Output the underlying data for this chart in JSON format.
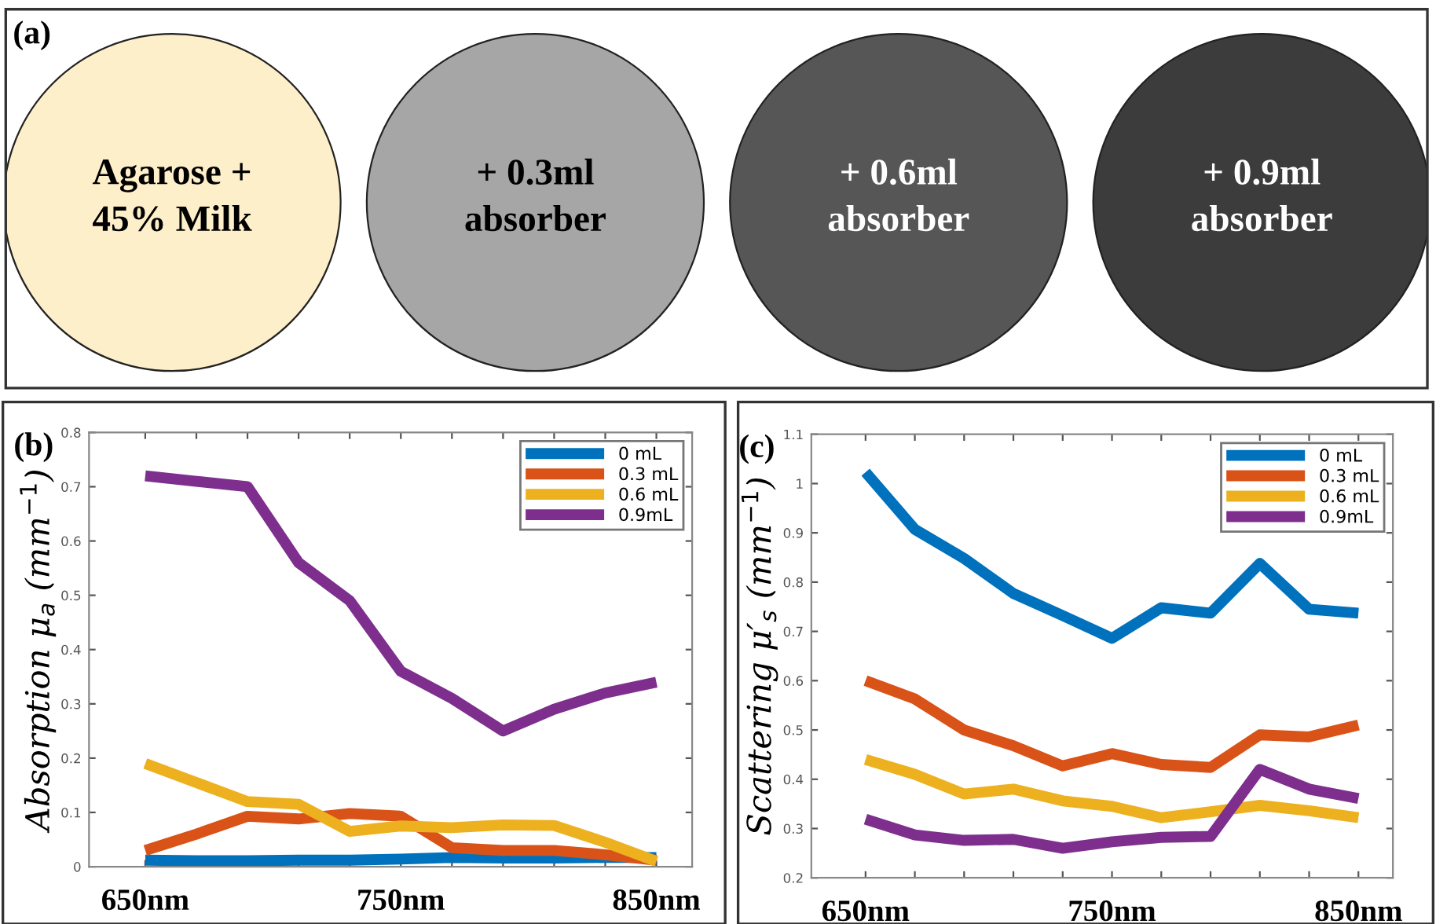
{
  "chart_data": [
    {
      "type": "other",
      "title": "(a)",
      "annotations": [
        "Agarose +\n45% Milk",
        "+ 0.3ml\nabsorber",
        "+ 0.6ml\nabsorber",
        "+ 0.9ml\nabsorber"
      ]
    },
    {
      "type": "line",
      "title": "(b)",
      "ylabel": "Absorption μ$_{a}$ (mm$^{−1}$)",
      "x": [
        650,
        670,
        690,
        710,
        730,
        750,
        770,
        790,
        810,
        830,
        850
      ],
      "xlim": [
        628,
        864
      ],
      "xticks": [
        {
          "value": 650,
          "label": "650nm"
        },
        {
          "value": 670,
          "label": null
        },
        {
          "value": 690,
          "label": null
        },
        {
          "value": 710,
          "label": null
        },
        {
          "value": 730,
          "label": null
        },
        {
          "value": 750,
          "label": "750nm"
        },
        {
          "value": 770,
          "label": null
        },
        {
          "value": 790,
          "label": null
        },
        {
          "value": 810,
          "label": null
        },
        {
          "value": 830,
          "label": null
        },
        {
          "value": 850,
          "label": "850nm"
        }
      ],
      "ylim": [
        0,
        0.8
      ],
      "yticks": [
        0,
        0.1,
        0.2,
        0.3,
        0.4,
        0.5,
        0.6,
        0.7,
        0.8
      ],
      "legend": "top right",
      "grid": false,
      "series": [
        {
          "name": "0 mL",
          "color": "#0072bd",
          "values": [
            0.012,
            0.011,
            0.011,
            0.012,
            0.012,
            0.014,
            0.017,
            0.016,
            0.016,
            0.017,
            0.017
          ]
        },
        {
          "name": "0.3 mL",
          "color": "#d95319",
          "values": [
            0.03,
            0.06,
            0.093,
            0.088,
            0.098,
            0.093,
            0.035,
            0.03,
            0.03,
            0.022,
            0.012
          ]
        },
        {
          "name": "0.6 mL",
          "color": "#edb120",
          "values": [
            0.19,
            0.155,
            0.12,
            0.115,
            0.065,
            0.075,
            0.072,
            0.077,
            0.076,
            0.045,
            0.01
          ]
        },
        {
          "name": "0.9mL",
          "color": "#7e2f8e",
          "values": [
            0.72,
            0.71,
            0.7,
            0.56,
            0.49,
            0.36,
            0.31,
            0.25,
            0.29,
            0.32,
            0.34
          ]
        }
      ]
    },
    {
      "type": "line",
      "title": "(c)",
      "ylabel": "Scattering μ′$_{s}$ (mm$^{−1}$)",
      "x": [
        650,
        670,
        690,
        710,
        730,
        750,
        770,
        790,
        810,
        830,
        850
      ],
      "xlim": [
        628,
        864
      ],
      "xticks": [
        {
          "value": 650,
          "label": "650nm"
        },
        {
          "value": 670,
          "label": null
        },
        {
          "value": 690,
          "label": null
        },
        {
          "value": 710,
          "label": null
        },
        {
          "value": 730,
          "label": null
        },
        {
          "value": 750,
          "label": "750nm"
        },
        {
          "value": 770,
          "label": null
        },
        {
          "value": 790,
          "label": null
        },
        {
          "value": 810,
          "label": null
        },
        {
          "value": 830,
          "label": null
        },
        {
          "value": 850,
          "label": "850nm"
        }
      ],
      "ylim": [
        0.2,
        1.1
      ],
      "yticks": [
        0.2,
        0.3,
        0.4,
        0.5,
        0.6,
        0.7,
        0.8,
        0.9,
        1,
        1.1
      ],
      "legend": "top right",
      "grid": false,
      "series": [
        {
          "name": "0 mL",
          "color": "#0072bd",
          "values": [
            1.023,
            0.907,
            0.848,
            0.777,
            0.732,
            0.686,
            0.748,
            0.737,
            0.838,
            0.745,
            0.737
          ]
        },
        {
          "name": "0.3 mL",
          "color": "#d95319",
          "values": [
            0.6,
            0.563,
            0.5,
            0.468,
            0.427,
            0.452,
            0.43,
            0.424,
            0.49,
            0.486,
            0.51
          ]
        },
        {
          "name": "0.6 mL",
          "color": "#edb120",
          "values": [
            0.44,
            0.41,
            0.37,
            0.38,
            0.356,
            0.345,
            0.322,
            0.334,
            0.347,
            0.336,
            0.322
          ]
        },
        {
          "name": "0.9mL",
          "color": "#7e2f8e",
          "values": [
            0.319,
            0.287,
            0.276,
            0.278,
            0.26,
            0.273,
            0.282,
            0.284,
            0.42,
            0.38,
            0.361
          ]
        }
      ]
    }
  ]
}
